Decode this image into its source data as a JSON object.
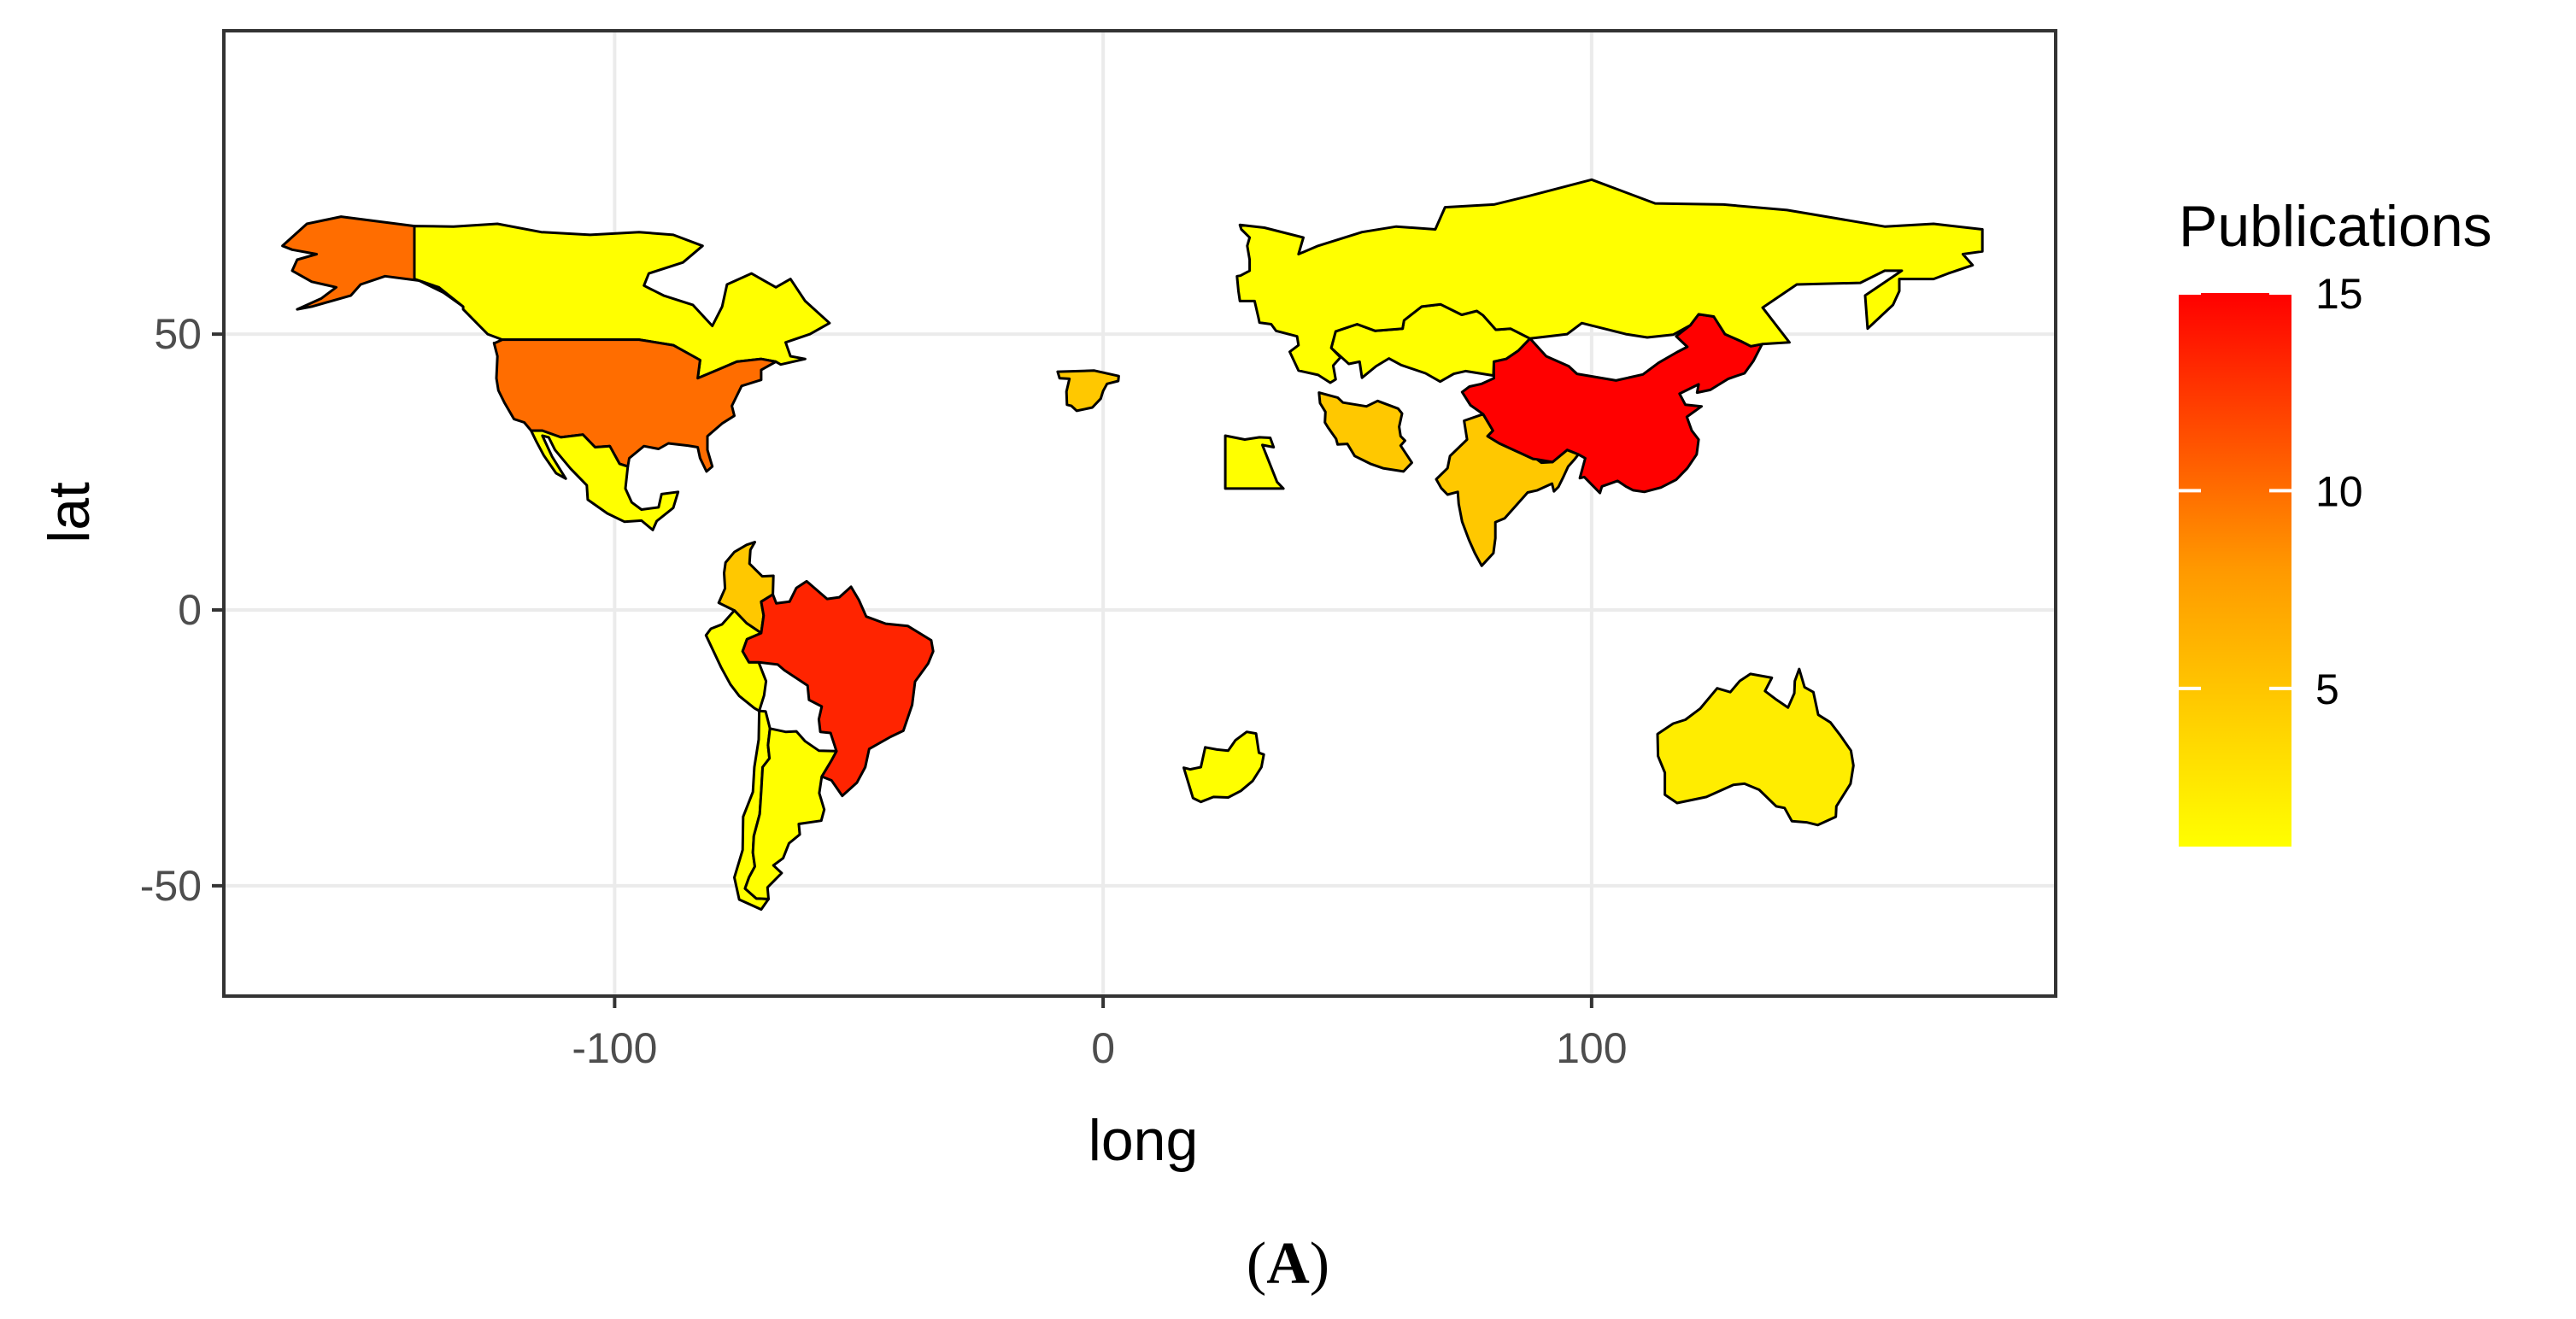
{
  "chart_data": {
    "type": "choropleth",
    "projection": "equirectangular",
    "xlabel": "long",
    "ylabel": "lat",
    "xlim": [
      -180,
      195
    ],
    "ylim": [
      -70,
      105
    ],
    "x_ticks": [
      -100,
      0,
      100
    ],
    "y_ticks": [
      -50,
      0,
      50
    ],
    "x_tick_labels": [
      "-100",
      "0",
      "100"
    ],
    "y_tick_labels": [
      "-50",
      "0",
      "50"
    ],
    "grid": true,
    "panel_background": "#ffffff",
    "grid_color": "#ebebeb",
    "border_color": "#000000",
    "missing_color": "#ffffff",
    "legend": {
      "title": "Publications",
      "position": "right",
      "min": 1,
      "max": 15,
      "breaks": [
        5,
        10,
        15
      ],
      "break_labels": [
        "5",
        "10",
        "15"
      ],
      "low_color": "#ffff00",
      "high_color": "#ff0000"
    },
    "regions": [
      {
        "name": "China",
        "value": 15
      },
      {
        "name": "Brazil",
        "value": 13
      },
      {
        "name": "United States",
        "value": 9
      },
      {
        "name": "Alaska (USA)",
        "value": 9
      },
      {
        "name": "India",
        "value": 4
      },
      {
        "name": "Iran",
        "value": 4
      },
      {
        "name": "Spain",
        "value": 4
      },
      {
        "name": "Colombia",
        "value": 4
      },
      {
        "name": "Australia",
        "value": 2
      },
      {
        "name": "Canada",
        "value": 1
      },
      {
        "name": "Russia",
        "value": 1
      },
      {
        "name": "Mexico",
        "value": 1
      },
      {
        "name": "Argentina",
        "value": 1
      },
      {
        "name": "Chile",
        "value": 1
      },
      {
        "name": "Peru",
        "value": 1
      },
      {
        "name": "Egypt",
        "value": 1
      },
      {
        "name": "South Africa",
        "value": 1
      },
      {
        "name": "Kazakhstan",
        "value": 1
      }
    ]
  },
  "caption": {
    "open": "(",
    "letter": "A",
    "close": ")"
  }
}
